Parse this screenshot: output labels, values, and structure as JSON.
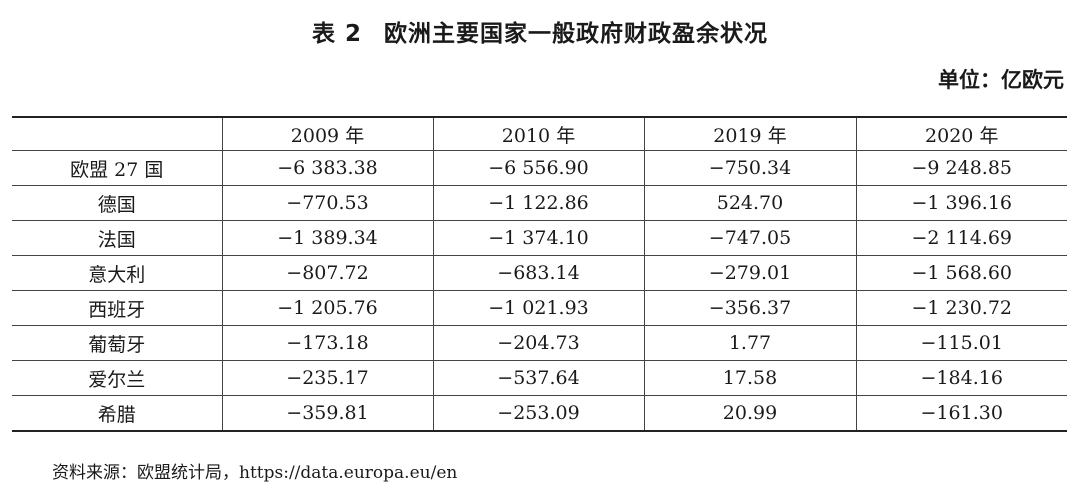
{
  "title": {
    "number": "表 2",
    "text": "欧洲主要国家一般政府财政盈余状况"
  },
  "unit": "单位：亿欧元",
  "table": {
    "header": [
      "",
      "2009 年",
      "2010 年",
      "2019 年",
      "2020 年"
    ],
    "rows": [
      [
        "欧盟 27 国",
        "−6 383.38",
        "−6 556.90",
        "−750.34",
        "−9 248.85"
      ],
      [
        "德国",
        "−770.53",
        "−1 122.86",
        "524.70",
        "−1 396.16"
      ],
      [
        "法国",
        "−1 389.34",
        "−1 374.10",
        "−747.05",
        "−2 114.69"
      ],
      [
        "意大利",
        "−807.72",
        "−683.14",
        "−279.01",
        "−1 568.60"
      ],
      [
        "西班牙",
        "−1 205.76",
        "−1 021.93",
        "−356.37",
        "−1 230.72"
      ],
      [
        "葡萄牙",
        "−173.18",
        "−204.73",
        "1.77",
        "−115.01"
      ],
      [
        "爱尔兰",
        "−235.17",
        "−537.64",
        "17.58",
        "−184.16"
      ],
      [
        "希腊",
        "−359.81",
        "−253.09",
        "20.99",
        "−161.30"
      ]
    ]
  },
  "source": "资料来源：欧盟统计局，https://data.europa.eu/en"
}
